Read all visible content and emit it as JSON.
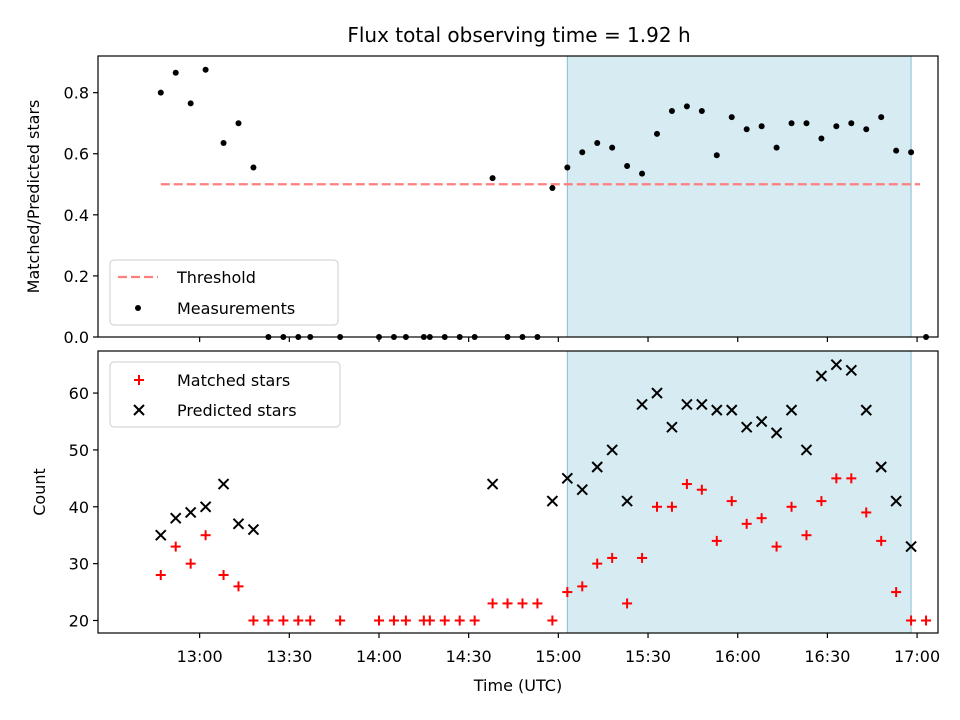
{
  "colors": {
    "threshold": "#ff7f7f",
    "measurement": "#000000",
    "matched": "#ff0000",
    "predicted": "#000000",
    "span_fill": "#add8e6"
  },
  "chart_data": [
    {
      "type": "scatter",
      "title": "Flux total observing time = 1.92 h",
      "xlabel": "",
      "ylabel": "Matched/Predicted stars",
      "xlim": [
        "12:26",
        "17:07"
      ],
      "ylim": [
        0,
        0.92
      ],
      "yticks": [
        0.0,
        0.2,
        0.4,
        0.6,
        0.8
      ],
      "ytick_labels": [
        "0.0",
        "0.2",
        "0.4",
        "0.6",
        "0.8"
      ],
      "grid": false,
      "legend_position": "lower-left",
      "shaded_span": [
        "15:03",
        "16:58"
      ],
      "series": [
        {
          "name": "Threshold",
          "style": "dashed-line",
          "x": [
            "12:47",
            "17:01"
          ],
          "y": [
            0.5,
            0.5
          ]
        },
        {
          "name": "Measurements",
          "style": "dot",
          "x": [
            "12:47",
            "12:52",
            "12:57",
            "13:02",
            "13:08",
            "13:13",
            "13:18",
            "13:23",
            "13:28",
            "13:33",
            "13:37",
            "13:47",
            "14:00",
            "14:05",
            "14:09",
            "14:15",
            "14:17",
            "14:22",
            "14:27",
            "14:32",
            "14:38",
            "14:43",
            "14:48",
            "14:53",
            "14:58",
            "15:03",
            "15:08",
            "15:13",
            "15:18",
            "15:23",
            "15:28",
            "15:33",
            "15:38",
            "15:43",
            "15:48",
            "15:53",
            "15:58",
            "16:03",
            "16:08",
            "16:13",
            "16:18",
            "16:23",
            "16:28",
            "16:33",
            "16:38",
            "16:43",
            "16:48",
            "16:53",
            "16:58",
            "17:03"
          ],
          "y": [
            0.8,
            0.865,
            0.765,
            0.875,
            0.635,
            0.7,
            0.555,
            0,
            0,
            0,
            0,
            0,
            0,
            0,
            0,
            0,
            0,
            0,
            0,
            0,
            0.52,
            0,
            0,
            0,
            0.488,
            0.555,
            0.605,
            0.635,
            0.62,
            0.56,
            0.535,
            0.665,
            0.74,
            0.755,
            0.74,
            0.595,
            0.72,
            0.68,
            0.69,
            0.62,
            0.7,
            0.7,
            0.65,
            0.69,
            0.7,
            0.68,
            0.72,
            0.61,
            0.605,
            0
          ]
        }
      ]
    },
    {
      "type": "scatter",
      "title": "",
      "xlabel": "Time (UTC)",
      "ylabel": "Count",
      "xlim": [
        "12:26",
        "17:07"
      ],
      "ylim": [
        17.8,
        67.4
      ],
      "yticks": [
        20,
        30,
        40,
        50,
        60
      ],
      "ytick_labels": [
        "20",
        "30",
        "40",
        "50",
        "60"
      ],
      "xticks": [
        "13:00",
        "13:30",
        "14:00",
        "14:30",
        "15:00",
        "15:30",
        "16:00",
        "16:30",
        "17:00"
      ],
      "grid": false,
      "legend_position": "upper-left",
      "shaded_span": [
        "15:03",
        "16:58"
      ],
      "series": [
        {
          "name": "Matched stars",
          "marker": "plus",
          "x": [
            "12:47",
            "12:52",
            "12:57",
            "13:02",
            "13:08",
            "13:13",
            "13:18",
            "13:23",
            "13:28",
            "13:33",
            "13:37",
            "13:47",
            "14:00",
            "14:05",
            "14:09",
            "14:15",
            "14:17",
            "14:22",
            "14:27",
            "14:32",
            "14:38",
            "14:43",
            "14:48",
            "14:53",
            "14:58",
            "15:03",
            "15:08",
            "15:13",
            "15:18",
            "15:23",
            "15:28",
            "15:33",
            "15:38",
            "15:43",
            "15:48",
            "15:53",
            "15:58",
            "16:03",
            "16:08",
            "16:13",
            "16:18",
            "16:23",
            "16:28",
            "16:33",
            "16:38",
            "16:43",
            "16:48",
            "16:53",
            "16:58",
            "17:03"
          ],
          "y": [
            28,
            33,
            30,
            35,
            28,
            26,
            20,
            20,
            20,
            20,
            20,
            20,
            20,
            20,
            20,
            20,
            20,
            20,
            20,
            20,
            23,
            23,
            23,
            23,
            20,
            25,
            26,
            30,
            31,
            23,
            31,
            40,
            40,
            44,
            43,
            34,
            41,
            37,
            38,
            33,
            40,
            35,
            41,
            45,
            45,
            39,
            34,
            25,
            20,
            20
          ]
        },
        {
          "name": "Predicted stars",
          "marker": "x",
          "x": [
            "12:47",
            "12:52",
            "12:57",
            "13:02",
            "13:08",
            "13:13",
            "13:18",
            "14:38",
            "14:58",
            "15:03",
            "15:08",
            "15:13",
            "15:18",
            "15:23",
            "15:28",
            "15:33",
            "15:38",
            "15:43",
            "15:48",
            "15:53",
            "15:58",
            "16:03",
            "16:08",
            "16:13",
            "16:18",
            "16:23",
            "16:28",
            "16:33",
            "16:38",
            "16:43",
            "16:48",
            "16:53",
            "16:58"
          ],
          "y": [
            35,
            38,
            39,
            40,
            44,
            37,
            36,
            44,
            41,
            45,
            43,
            47,
            50,
            41,
            58,
            60,
            54,
            58,
            58,
            57,
            57,
            54,
            55,
            53,
            57,
            50,
            63,
            65,
            64,
            57,
            47,
            41,
            33
          ]
        }
      ]
    }
  ]
}
